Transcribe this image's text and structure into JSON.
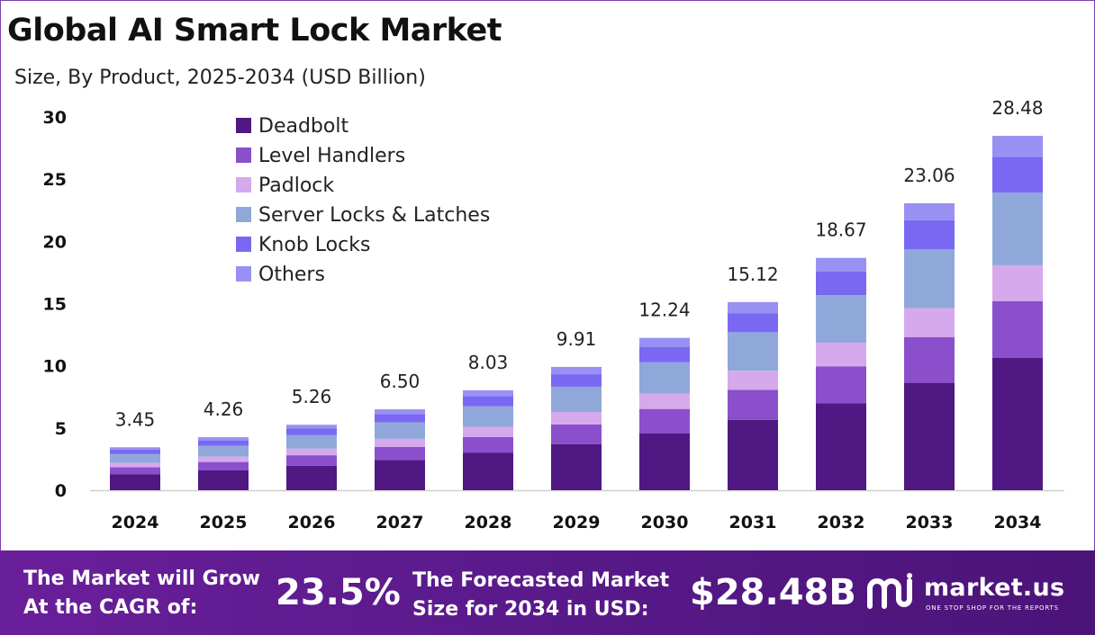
{
  "title": "Global AI Smart Lock Market",
  "subtitle": "Size, By Product, 2025-2034 (USD Billion)",
  "chart_data": {
    "type": "bar",
    "stacked": true,
    "title": "Global AI Smart Lock Market",
    "subtitle": "Size, By Product, 2025-2034 (USD Billion)",
    "categories": [
      "2024",
      "2025",
      "2026",
      "2027",
      "2028",
      "2029",
      "2030",
      "2031",
      "2032",
      "2033",
      "2034"
    ],
    "totals": [
      3.45,
      4.26,
      5.26,
      6.5,
      8.03,
      9.91,
      12.24,
      15.12,
      18.67,
      23.06,
      28.48
    ],
    "total_labels": [
      "3.45",
      "4.26",
      "5.26",
      "6.50",
      "8.03",
      "9.91",
      "12.24",
      "15.12",
      "18.67",
      "23.06",
      "28.48"
    ],
    "series": [
      {
        "name": "Deadbolt",
        "color": "#4f1882",
        "values": [
          1.29,
          1.59,
          1.97,
          2.43,
          3.0,
          3.71,
          4.58,
          5.66,
          6.98,
          8.63,
          10.65
        ]
      },
      {
        "name": "Level Handlers",
        "color": "#8b4fcc",
        "values": [
          0.55,
          0.68,
          0.84,
          1.04,
          1.28,
          1.58,
          1.95,
          2.41,
          2.98,
          3.68,
          4.55
        ]
      },
      {
        "name": "Padlock",
        "color": "#d6a9ec",
        "values": [
          0.35,
          0.43,
          0.53,
          0.66,
          0.81,
          1.0,
          1.24,
          1.53,
          1.89,
          2.33,
          2.88
        ]
      },
      {
        "name": "Server Locks & Latches",
        "color": "#90a8d9",
        "values": [
          0.71,
          0.87,
          1.08,
          1.33,
          1.65,
          2.03,
          2.51,
          3.1,
          3.83,
          4.73,
          5.84
        ]
      },
      {
        "name": "Knob Locks",
        "color": "#7b68f2",
        "values": [
          0.35,
          0.43,
          0.53,
          0.66,
          0.81,
          1.0,
          1.24,
          1.53,
          1.89,
          2.33,
          2.88
        ]
      },
      {
        "name": "Others",
        "color": "#9891f3",
        "values": [
          0.2,
          0.26,
          0.31,
          0.38,
          0.48,
          0.59,
          0.72,
          0.89,
          1.1,
          1.36,
          1.68
        ]
      }
    ],
    "y_ticks": [
      0,
      5,
      10,
      15,
      20,
      25,
      30
    ],
    "ylim": [
      0,
      30
    ],
    "xlabel": "",
    "ylabel": "",
    "legend_position": "top-left",
    "grid": false
  },
  "footer": {
    "cagr_label": "The Market will Grow At the CAGR of:",
    "cagr_value": "23.5%",
    "forecast_label": "The Forecasted Market Size for 2034 in USD:",
    "forecast_value": "$28.48B",
    "brand_name": "market.us",
    "brand_tagline": "ONE STOP SHOP FOR THE REPORTS"
  }
}
